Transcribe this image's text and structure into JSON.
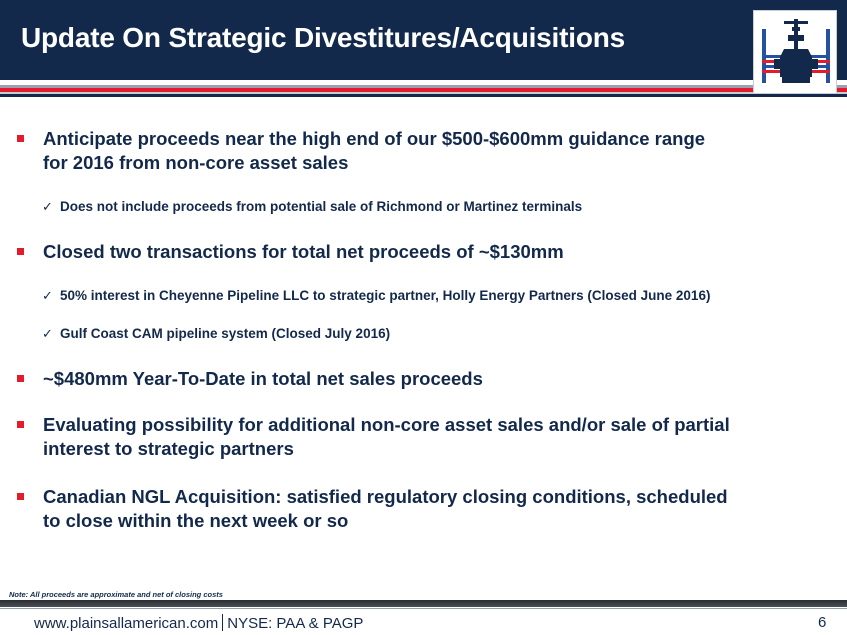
{
  "header": {
    "title": "Update On Strategic Divestitures/Acquisitions",
    "bg_color": "#13294b",
    "accent_color": "#e21b2d",
    "logo": "plains-valve-logo"
  },
  "bullets": [
    {
      "text_line1": "Anticipate proceeds near the high end of our $500-$600mm guidance range",
      "text_line2": "for 2016 from non-core asset sales",
      "subs": [
        "Does not include proceeds from potential sale of Richmond or Martinez terminals"
      ]
    },
    {
      "text_line1": "Closed two transactions for total net proceeds of ~$130mm",
      "text_line2": "",
      "subs": [
        "50% interest in Cheyenne Pipeline LLC to strategic partner, Holly Energy Partners (Closed June 2016)",
        "Gulf Coast CAM pipeline system (Closed July 2016)"
      ]
    },
    {
      "text_line1": "~$480mm Year-To-Date in total net sales proceeds",
      "text_line2": "",
      "subs": []
    },
    {
      "text_line1": "Evaluating possibility for additional non-core asset sales and/or sale of partial",
      "text_line2": "interest to strategic partners",
      "subs": []
    },
    {
      "text_line1": "Canadian NGL Acquisition: satisfied regulatory closing conditions, scheduled",
      "text_line2": "to close within the next week or so",
      "subs": []
    }
  ],
  "check_mark": "✓",
  "note": "Note: All proceeds are approximate and net of closing costs",
  "footer": {
    "website": "www.plainsallamerican.com",
    "ticker": "NYSE: PAA & PAGP",
    "page_number": "6"
  }
}
